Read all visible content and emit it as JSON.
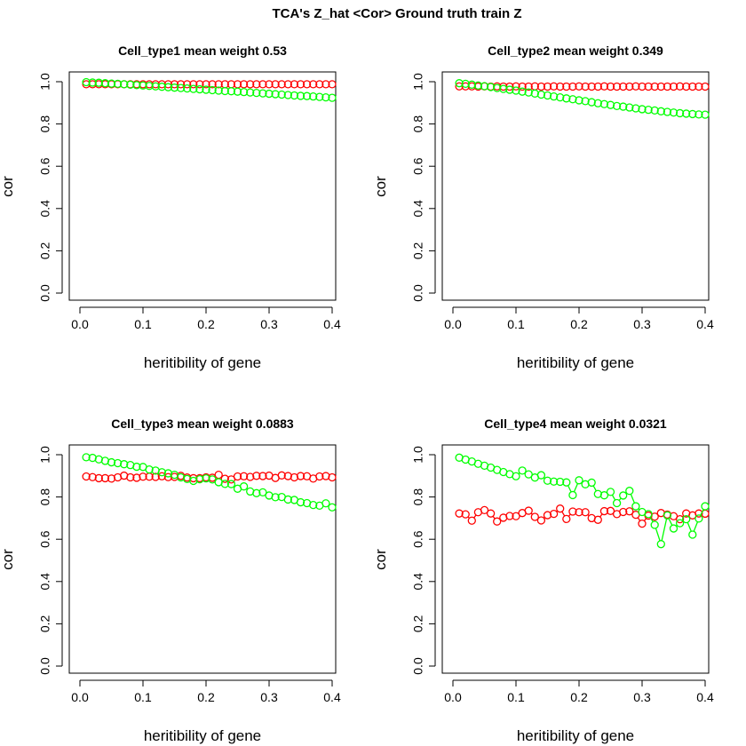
{
  "figure": {
    "title": "TCA's Z_hat <Cor> Ground truth train Z"
  },
  "colors": {
    "red_series": "#ff0000",
    "green_series": "#00ff00",
    "axes": "#000000"
  },
  "chart_data": [
    {
      "type": "line",
      "title": "Cell_type1 mean weight 0.53",
      "xlabel": "heritibility of gene",
      "ylabel": "cor",
      "xlim": [
        0.0,
        0.4
      ],
      "ylim": [
        0.0,
        1.0
      ],
      "xticks": [
        "0.0",
        "0.1",
        "0.2",
        "0.3",
        "0.4"
      ],
      "yticks": [
        "0.0",
        "0.2",
        "0.4",
        "0.6",
        "0.8",
        "1.0"
      ],
      "grid": false,
      "x": [
        0.01,
        0.02,
        0.03,
        0.04,
        0.05,
        0.06,
        0.07,
        0.08,
        0.09,
        0.1,
        0.11,
        0.12,
        0.13,
        0.14,
        0.15,
        0.16,
        0.17,
        0.18,
        0.19,
        0.2,
        0.21,
        0.22,
        0.23,
        0.24,
        0.25,
        0.26,
        0.27,
        0.28,
        0.29,
        0.3,
        0.31,
        0.32,
        0.33,
        0.34,
        0.35,
        0.36,
        0.37,
        0.38,
        0.39,
        0.4
      ],
      "series": [
        {
          "color": "#ff0000",
          "values": [
            0.988,
            0.988,
            0.988,
            0.988,
            0.988,
            0.988,
            0.988,
            0.988,
            0.988,
            0.988,
            0.988,
            0.988,
            0.988,
            0.988,
            0.988,
            0.988,
            0.988,
            0.988,
            0.988,
            0.988,
            0.988,
            0.988,
            0.988,
            0.988,
            0.988,
            0.988,
            0.988,
            0.988,
            0.988,
            0.988,
            0.988,
            0.988,
            0.988,
            0.988,
            0.988,
            0.988,
            0.988,
            0.988,
            0.988,
            0.988
          ]
        },
        {
          "color": "#00ff00",
          "values": [
            0.998,
            0.996,
            0.995,
            0.993,
            0.991,
            0.99,
            0.988,
            0.986,
            0.984,
            0.982,
            0.98,
            0.978,
            0.976,
            0.974,
            0.972,
            0.97,
            0.968,
            0.966,
            0.964,
            0.962,
            0.96,
            0.958,
            0.956,
            0.955,
            0.953,
            0.951,
            0.949,
            0.947,
            0.945,
            0.943,
            0.941,
            0.939,
            0.937,
            0.935,
            0.933,
            0.932,
            0.93,
            0.928,
            0.926,
            0.924
          ]
        }
      ]
    },
    {
      "type": "line",
      "title": "Cell_type2 mean weight 0.349",
      "xlabel": "heritibility of gene",
      "ylabel": "cor",
      "xlim": [
        0.0,
        0.4
      ],
      "ylim": [
        0.0,
        1.0
      ],
      "xticks": [
        "0.0",
        "0.1",
        "0.2",
        "0.3",
        "0.4"
      ],
      "yticks": [
        "0.0",
        "0.2",
        "0.4",
        "0.6",
        "0.8",
        "1.0"
      ],
      "grid": false,
      "x": [
        0.01,
        0.02,
        0.03,
        0.04,
        0.05,
        0.06,
        0.07,
        0.08,
        0.09,
        0.1,
        0.11,
        0.12,
        0.13,
        0.14,
        0.15,
        0.16,
        0.17,
        0.18,
        0.19,
        0.2,
        0.21,
        0.22,
        0.23,
        0.24,
        0.25,
        0.26,
        0.27,
        0.28,
        0.29,
        0.3,
        0.31,
        0.32,
        0.33,
        0.34,
        0.35,
        0.36,
        0.37,
        0.38,
        0.39,
        0.4
      ],
      "series": [
        {
          "color": "#ff0000",
          "values": [
            0.978,
            0.978,
            0.978,
            0.977,
            0.978,
            0.977,
            0.978,
            0.977,
            0.977,
            0.978,
            0.977,
            0.977,
            0.978,
            0.977,
            0.977,
            0.978,
            0.977,
            0.977,
            0.977,
            0.978,
            0.977,
            0.977,
            0.977,
            0.978,
            0.977,
            0.977,
            0.977,
            0.977,
            0.978,
            0.977,
            0.977,
            0.977,
            0.977,
            0.977,
            0.977,
            0.978,
            0.977,
            0.977,
            0.977,
            0.977
          ]
        },
        {
          "color": "#00ff00",
          "values": [
            0.993,
            0.99,
            0.986,
            0.982,
            0.979,
            0.975,
            0.97,
            0.966,
            0.962,
            0.958,
            0.953,
            0.949,
            0.944,
            0.939,
            0.935,
            0.93,
            0.926,
            0.921,
            0.917,
            0.912,
            0.908,
            0.903,
            0.898,
            0.894,
            0.89,
            0.885,
            0.882,
            0.878,
            0.874,
            0.87,
            0.867,
            0.864,
            0.86,
            0.857,
            0.854,
            0.851,
            0.849,
            0.847,
            0.845,
            0.844
          ]
        }
      ]
    },
    {
      "type": "line",
      "title": "Cell_type3 mean weight 0.0883",
      "xlabel": "heritibility of gene",
      "ylabel": "cor",
      "xlim": [
        0.0,
        0.4
      ],
      "ylim": [
        0.0,
        1.0
      ],
      "xticks": [
        "0.0",
        "0.1",
        "0.2",
        "0.3",
        "0.4"
      ],
      "yticks": [
        "0.0",
        "0.2",
        "0.4",
        "0.6",
        "0.8",
        "1.0"
      ],
      "grid": false,
      "x": [
        0.01,
        0.02,
        0.03,
        0.04,
        0.05,
        0.06,
        0.07,
        0.08,
        0.09,
        0.1,
        0.11,
        0.12,
        0.13,
        0.14,
        0.15,
        0.16,
        0.17,
        0.18,
        0.19,
        0.2,
        0.21,
        0.22,
        0.23,
        0.24,
        0.25,
        0.26,
        0.27,
        0.28,
        0.29,
        0.3,
        0.31,
        0.32,
        0.33,
        0.34,
        0.35,
        0.36,
        0.37,
        0.38,
        0.39,
        0.4
      ],
      "series": [
        {
          "color": "#ff0000",
          "values": [
            0.897,
            0.894,
            0.889,
            0.889,
            0.887,
            0.893,
            0.901,
            0.893,
            0.891,
            0.896,
            0.896,
            0.895,
            0.898,
            0.894,
            0.895,
            0.9,
            0.892,
            0.889,
            0.889,
            0.893,
            0.891,
            0.905,
            0.886,
            0.883,
            0.897,
            0.898,
            0.895,
            0.9,
            0.899,
            0.901,
            0.89,
            0.902,
            0.899,
            0.893,
            0.899,
            0.898,
            0.887,
            0.897,
            0.899,
            0.893
          ]
        },
        {
          "color": "#00ff00",
          "values": [
            0.988,
            0.985,
            0.978,
            0.971,
            0.964,
            0.96,
            0.955,
            0.951,
            0.943,
            0.942,
            0.93,
            0.925,
            0.917,
            0.912,
            0.905,
            0.893,
            0.885,
            0.876,
            0.884,
            0.888,
            0.883,
            0.87,
            0.862,
            0.861,
            0.839,
            0.85,
            0.826,
            0.818,
            0.822,
            0.807,
            0.799,
            0.8,
            0.788,
            0.786,
            0.775,
            0.771,
            0.762,
            0.759,
            0.77,
            0.751
          ]
        }
      ]
    },
    {
      "type": "line",
      "title": "Cell_type4 mean weight 0.0321",
      "xlabel": "heritibility of gene",
      "ylabel": "cor",
      "xlim": [
        0.0,
        0.4
      ],
      "ylim": [
        0.0,
        1.0
      ],
      "xticks": [
        "0.0",
        "0.1",
        "0.2",
        "0.3",
        "0.4"
      ],
      "yticks": [
        "0.0",
        "0.2",
        "0.4",
        "0.6",
        "0.8",
        "1.0"
      ],
      "grid": false,
      "x": [
        0.01,
        0.02,
        0.03,
        0.04,
        0.05,
        0.06,
        0.07,
        0.08,
        0.09,
        0.1,
        0.11,
        0.12,
        0.13,
        0.14,
        0.15,
        0.16,
        0.17,
        0.18,
        0.19,
        0.2,
        0.21,
        0.22,
        0.23,
        0.24,
        0.25,
        0.26,
        0.27,
        0.28,
        0.29,
        0.3,
        0.31,
        0.32,
        0.33,
        0.34,
        0.35,
        0.36,
        0.37,
        0.38,
        0.39,
        0.4
      ],
      "series": [
        {
          "color": "#ff0000",
          "values": [
            0.722,
            0.718,
            0.688,
            0.728,
            0.738,
            0.722,
            0.684,
            0.702,
            0.71,
            0.709,
            0.724,
            0.735,
            0.706,
            0.689,
            0.714,
            0.72,
            0.745,
            0.696,
            0.731,
            0.728,
            0.728,
            0.7,
            0.692,
            0.733,
            0.734,
            0.719,
            0.729,
            0.732,
            0.716,
            0.674,
            0.712,
            0.707,
            0.724,
            0.717,
            0.709,
            0.695,
            0.722,
            0.713,
            0.722,
            0.721
          ]
        },
        {
          "color": "#00ff00",
          "values": [
            0.986,
            0.977,
            0.968,
            0.957,
            0.948,
            0.939,
            0.928,
            0.918,
            0.908,
            0.898,
            0.925,
            0.907,
            0.892,
            0.903,
            0.877,
            0.873,
            0.872,
            0.869,
            0.809,
            0.879,
            0.86,
            0.868,
            0.814,
            0.808,
            0.824,
            0.771,
            0.807,
            0.829,
            0.756,
            0.729,
            0.719,
            0.668,
            0.577,
            0.713,
            0.651,
            0.676,
            0.695,
            0.622,
            0.698,
            0.756
          ]
        }
      ]
    }
  ]
}
